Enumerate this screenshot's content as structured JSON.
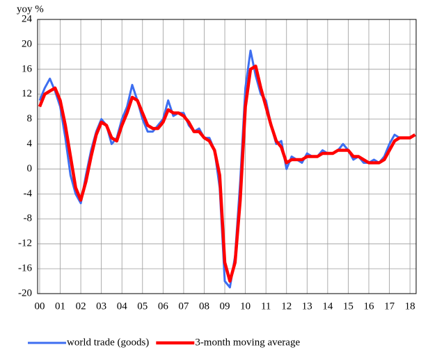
{
  "chart_data": {
    "type": "line",
    "y_axis_label": "yoy %",
    "x": [
      0,
      0.25,
      0.5,
      0.75,
      1,
      1.25,
      1.5,
      1.75,
      2,
      2.25,
      2.5,
      2.75,
      3,
      3.25,
      3.5,
      3.75,
      4,
      4.25,
      4.5,
      4.75,
      5,
      5.25,
      5.5,
      5.75,
      6,
      6.25,
      6.5,
      6.75,
      7,
      7.25,
      7.5,
      7.75,
      8,
      8.25,
      8.5,
      8.75,
      9,
      9.25,
      9.5,
      9.75,
      10,
      10.25,
      10.5,
      10.75,
      11,
      11.25,
      11.5,
      11.75,
      12,
      12.25,
      12.5,
      12.75,
      13,
      13.25,
      13.5,
      13.75,
      14,
      14.25,
      14.5,
      14.75,
      15,
      15.25,
      15.5,
      15.75,
      16,
      16.25,
      16.5,
      16.75,
      17,
      17.25,
      17.5,
      17.75,
      18,
      18.25
    ],
    "series": [
      {
        "name": "world trade (goods)",
        "color": "#3d6ef0",
        "width": 3,
        "values": [
          11,
          13,
          14.5,
          12.5,
          10,
          5,
          -1,
          -4,
          -5.5,
          -1,
          3,
          6,
          8,
          7,
          4,
          5,
          8,
          10,
          13.5,
          11,
          8,
          6,
          6,
          7,
          8,
          11,
          8.5,
          9,
          9,
          7,
          6,
          6.5,
          5,
          5,
          3,
          -3,
          -18,
          -19,
          -14,
          -2,
          13,
          19,
          15,
          12,
          11,
          7,
          4,
          4.5,
          0,
          2,
          1.5,
          1,
          2.5,
          2,
          2,
          3,
          2.5,
          2.5,
          3,
          4,
          3,
          1.5,
          2,
          1,
          1,
          1.5,
          1,
          2,
          4,
          5.5,
          5,
          5,
          5,
          5.5
        ]
      },
      {
        "name": "3-month moving average",
        "color": "#ff0000",
        "width": 4.5,
        "values": [
          10,
          12,
          12.5,
          13,
          11,
          7,
          2,
          -3,
          -5,
          -2,
          2,
          5.5,
          7.5,
          7,
          5,
          4.5,
          7,
          9,
          11.5,
          11,
          9,
          7,
          6.5,
          6.5,
          7.5,
          9.5,
          9,
          9,
          8.5,
          7.5,
          6,
          6,
          5,
          4.5,
          3,
          -1,
          -15,
          -18,
          -15,
          -5,
          10,
          16,
          16.5,
          13,
          10,
          7,
          4.5,
          3.5,
          1,
          1.5,
          1.5,
          1.5,
          2,
          2,
          2,
          2.5,
          2.5,
          2.5,
          3,
          3,
          3,
          2,
          2,
          1.5,
          1,
          1,
          1,
          1.5,
          3,
          4.5,
          5,
          5,
          5,
          5.5
        ]
      }
    ],
    "xlim": [
      -0.1,
      18.3
    ],
    "xticks": [
      {
        "value": 0,
        "label": "00"
      },
      {
        "value": 1,
        "label": "01"
      },
      {
        "value": 2,
        "label": "02"
      },
      {
        "value": 3,
        "label": "03"
      },
      {
        "value": 4,
        "label": "04"
      },
      {
        "value": 5,
        "label": "05"
      },
      {
        "value": 6,
        "label": "06"
      },
      {
        "value": 7,
        "label": "07"
      },
      {
        "value": 8,
        "label": "08"
      },
      {
        "value": 9,
        "label": "09"
      },
      10,
      11,
      12,
      13,
      14,
      15,
      16,
      17,
      18
    ],
    "ylim": [
      -20,
      24
    ],
    "yticks": [
      -20,
      -16,
      -12,
      -8,
      -4,
      0,
      4,
      8,
      12,
      16,
      20,
      24
    ],
    "grid": true
  }
}
